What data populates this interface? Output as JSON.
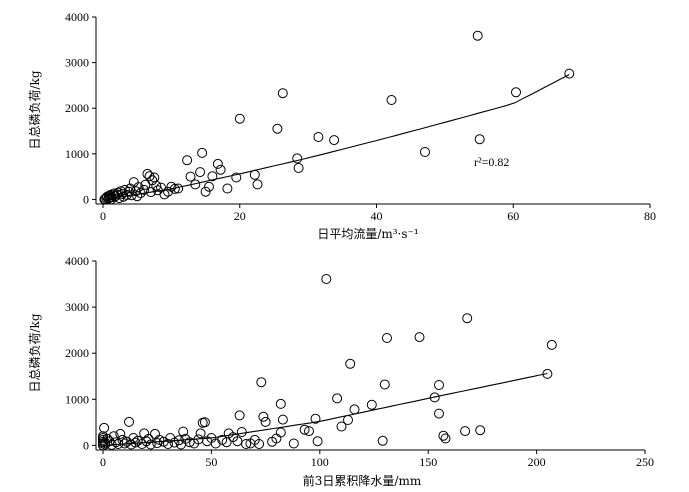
{
  "chart_data": [
    {
      "type": "scatter",
      "xlabel": "日平均流量/m³·s⁻¹",
      "ylabel": "日总磷负荷/kg",
      "xlim": [
        0,
        80
      ],
      "ylim": [
        -100,
        4000
      ],
      "x_ticks": [
        "0",
        "20",
        "40",
        "60",
        "80"
      ],
      "y_ticks": [
        "0",
        "1000",
        "2000",
        "3000",
        "4000"
      ],
      "annotation": "r²=0.82",
      "grid": false,
      "legend": "none",
      "points": [
        [
          0.2,
          0
        ],
        [
          0.3,
          10
        ],
        [
          0.5,
          30
        ],
        [
          0.6,
          60
        ],
        [
          0.8,
          20
        ],
        [
          0.9,
          80
        ],
        [
          1.0,
          40
        ],
        [
          1.1,
          100
        ],
        [
          1.2,
          0
        ],
        [
          1.3,
          50
        ],
        [
          1.5,
          90
        ],
        [
          1.6,
          130
        ],
        [
          1.8,
          70
        ],
        [
          2.0,
          110
        ],
        [
          2.2,
          150
        ],
        [
          2.4,
          30
        ],
        [
          2.6,
          180
        ],
        [
          2.8,
          120
        ],
        [
          3.0,
          60
        ],
        [
          3.2,
          210
        ],
        [
          3.5,
          100
        ],
        [
          3.8,
          170
        ],
        [
          4.0,
          240
        ],
        [
          4.2,
          90
        ],
        [
          4.5,
          380
        ],
        [
          4.8,
          180
        ],
        [
          5.0,
          70
        ],
        [
          5.2,
          270
        ],
        [
          5.5,
          140
        ],
        [
          6.0,
          210
        ],
        [
          6.2,
          320
        ],
        [
          6.5,
          560
        ],
        [
          6.8,
          510
        ],
        [
          7.0,
          160
        ],
        [
          7.2,
          420
        ],
        [
          7.5,
          480
        ],
        [
          7.8,
          300
        ],
        [
          8.0,
          200
        ],
        [
          8.5,
          260
        ],
        [
          9.0,
          110
        ],
        [
          9.5,
          170
        ],
        [
          10.0,
          280
        ],
        [
          10.5,
          230
        ],
        [
          11.0,
          240
        ],
        [
          12.3,
          860
        ],
        [
          12.8,
          500
        ],
        [
          13.5,
          330
        ],
        [
          14.2,
          600
        ],
        [
          14.5,
          1020
        ],
        [
          15.0,
          170
        ],
        [
          15.5,
          280
        ],
        [
          16.0,
          510
        ],
        [
          16.8,
          780
        ],
        [
          17.2,
          650
        ],
        [
          18.2,
          240
        ],
        [
          19.5,
          480
        ],
        [
          20.0,
          1770
        ],
        [
          22.2,
          540
        ],
        [
          22.6,
          330
        ],
        [
          25.5,
          1550
        ],
        [
          26.3,
          2330
        ],
        [
          28.4,
          900
        ],
        [
          28.6,
          690
        ],
        [
          31.5,
          1370
        ],
        [
          33.8,
          1300
        ],
        [
          42.2,
          2180
        ],
        [
          47.1,
          1040
        ],
        [
          54.8,
          3590
        ],
        [
          55.1,
          1320
        ],
        [
          60.4,
          2350
        ],
        [
          68.2,
          2760
        ]
      ],
      "fit": [
        [
          0,
          0
        ],
        [
          10,
          230
        ],
        [
          20,
          560
        ],
        [
          30,
          910
        ],
        [
          40,
          1290
        ],
        [
          50,
          1690
        ],
        [
          60,
          2100
        ],
        [
          68.2,
          2740
        ]
      ]
    },
    {
      "type": "scatter",
      "xlabel": "前3日累积降水量/mm",
      "ylabel": "日总磷负荷/kg",
      "xlim": [
        0,
        250
      ],
      "ylim": [
        -100,
        4000
      ],
      "x_ticks": [
        "0",
        "50",
        "100",
        "150",
        "200",
        "250"
      ],
      "y_ticks": [
        "0",
        "1000",
        "2000",
        "3000",
        "4000"
      ],
      "grid": false,
      "legend": "none",
      "points": [
        [
          0,
          0
        ],
        [
          0,
          40
        ],
        [
          0,
          80
        ],
        [
          0,
          120
        ],
        [
          0,
          160
        ],
        [
          0,
          200
        ],
        [
          0.5,
          380
        ],
        [
          1,
          60
        ],
        [
          1,
          20
        ],
        [
          2,
          140
        ],
        [
          3,
          90
        ],
        [
          4,
          10
        ],
        [
          5,
          200
        ],
        [
          6,
          70
        ],
        [
          7,
          30
        ],
        [
          8,
          250
        ],
        [
          9,
          120
        ],
        [
          10,
          40
        ],
        [
          11,
          80
        ],
        [
          12,
          510
        ],
        [
          13,
          20
        ],
        [
          14,
          160
        ],
        [
          15,
          60
        ],
        [
          16,
          100
        ],
        [
          18,
          30
        ],
        [
          19,
          260
        ],
        [
          20,
          90
        ],
        [
          21,
          140
        ],
        [
          22,
          20
        ],
        [
          24,
          250
        ],
        [
          25,
          50
        ],
        [
          26,
          120
        ],
        [
          28,
          80
        ],
        [
          30,
          30
        ],
        [
          31,
          160
        ],
        [
          33,
          60
        ],
        [
          35,
          110
        ],
        [
          36,
          20
        ],
        [
          37,
          300
        ],
        [
          38,
          140
        ],
        [
          40,
          70
        ],
        [
          42,
          40
        ],
        [
          44,
          130
        ],
        [
          45,
          260
        ],
        [
          46,
          490
        ],
        [
          47,
          500
        ],
        [
          48,
          90
        ],
        [
          50,
          160
        ],
        [
          52,
          40
        ],
        [
          55,
          120
        ],
        [
          57,
          70
        ],
        [
          58,
          260
        ],
        [
          60,
          180
        ],
        [
          62,
          90
        ],
        [
          63,
          650
        ],
        [
          64,
          290
        ],
        [
          66,
          30
        ],
        [
          68,
          40
        ],
        [
          70,
          120
        ],
        [
          72,
          30
        ],
        [
          73,
          1370
        ],
        [
          74,
          620
        ],
        [
          75,
          510
        ],
        [
          78,
          80
        ],
        [
          80,
          150
        ],
        [
          82,
          280
        ],
        [
          82,
          900
        ],
        [
          83,
          560
        ],
        [
          88,
          40
        ],
        [
          93,
          340
        ],
        [
          95,
          310
        ],
        [
          98,
          580
        ],
        [
          99,
          90
        ],
        [
          103,
          3610
        ],
        [
          108,
          1020
        ],
        [
          110,
          410
        ],
        [
          113,
          550
        ],
        [
          114,
          1770
        ],
        [
          116,
          780
        ],
        [
          124,
          880
        ],
        [
          129,
          100
        ],
        [
          130,
          1320
        ],
        [
          131,
          2330
        ],
        [
          146,
          2350
        ],
        [
          153,
          1040
        ],
        [
          155,
          690
        ],
        [
          155,
          1310
        ],
        [
          157,
          210
        ],
        [
          158,
          150
        ],
        [
          167,
          310
        ],
        [
          168,
          2760
        ],
        [
          174,
          330
        ],
        [
          205,
          1550
        ],
        [
          207,
          2180
        ]
      ],
      "fit": [
        [
          0,
          0
        ],
        [
          50,
          160
        ],
        [
          100,
          520
        ],
        [
          150,
          1020
        ],
        [
          205,
          1560
        ]
      ]
    }
  ]
}
